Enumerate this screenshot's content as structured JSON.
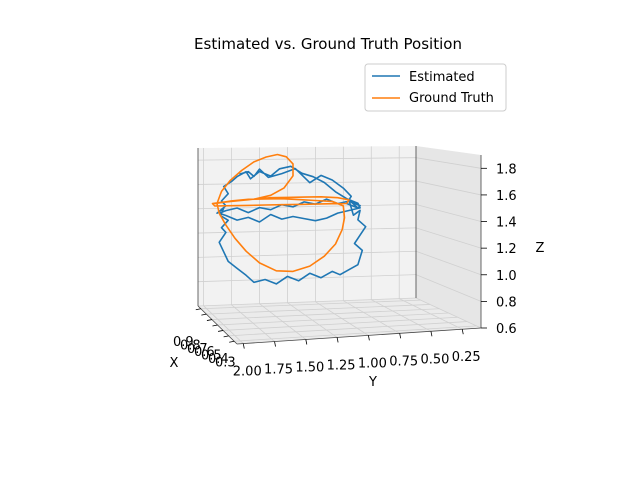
{
  "chart_data": {
    "type": "line3d",
    "title": "Estimated vs. Ground Truth Position",
    "xlabel": "X",
    "ylabel": "Y",
    "zlabel": "Z",
    "xlim": [
      0.2,
      1.0
    ],
    "ylim": [
      0.1,
      2.05
    ],
    "zlim": [
      0.6,
      1.9
    ],
    "x_ticks": [
      "0.9",
      "0.8",
      "0.7",
      "0.6",
      "0.5",
      "0.4",
      "0.3"
    ],
    "y_ticks": [
      "2.00",
      "1.75",
      "1.50",
      "1.25",
      "1.00",
      "0.75",
      "0.50",
      "0.25"
    ],
    "y_tick_values": [
      2.0,
      1.75,
      1.5,
      1.25,
      1.0,
      0.75,
      0.5,
      0.25
    ],
    "z_ticks": [
      "1.8",
      "1.6",
      "1.4",
      "1.2",
      "1.0",
      "0.8",
      "0.6"
    ],
    "z_tick_values": [
      1.8,
      1.6,
      1.4,
      1.2,
      1.0,
      0.8,
      0.6
    ],
    "legend_location": "top-right",
    "series": [
      {
        "name": "Estimated",
        "color": "#1f77b4",
        "y": [
          1.68,
          1.6,
          1.55,
          1.5,
          1.42,
          1.3,
          1.18,
          1.05,
          0.95,
          0.85,
          0.75,
          0.68,
          0.72,
          0.62,
          0.7,
          0.66,
          0.6,
          0.62,
          0.55,
          0.6,
          0.65,
          0.58,
          0.6,
          0.62,
          0.7,
          0.78,
          0.85,
          0.95,
          1.05,
          1.15,
          1.25,
          1.35,
          1.45,
          1.55,
          1.62,
          1.7,
          1.78,
          1.82,
          1.86,
          1.8,
          1.84,
          1.78,
          1.85,
          1.82,
          1.88,
          1.8,
          1.84,
          1.78,
          1.82,
          1.75,
          1.7,
          1.62,
          1.58,
          1.5,
          1.4,
          1.32,
          1.22,
          1.12,
          1.02,
          0.92,
          0.82,
          0.72,
          0.62,
          0.6,
          0.7,
          0.8,
          0.9,
          1.0,
          1.1,
          1.2,
          1.3,
          1.4,
          1.5,
          1.6,
          1.7,
          1.8,
          1.86,
          1.8,
          1.7,
          1.6,
          1.5,
          1.4,
          1.3,
          1.2,
          1.1,
          1.0,
          0.9,
          0.8,
          0.7,
          0.6,
          0.62
        ],
        "z": [
          1.68,
          1.7,
          1.66,
          1.72,
          1.65,
          1.68,
          1.72,
          1.6,
          1.66,
          1.62,
          1.55,
          1.48,
          1.42,
          1.38,
          1.45,
          1.32,
          1.36,
          1.28,
          1.22,
          1.15,
          1.08,
          1.02,
          0.96,
          0.9,
          0.86,
          0.82,
          0.85,
          0.8,
          0.84,
          0.78,
          0.82,
          0.76,
          0.8,
          0.78,
          0.84,
          0.9,
          0.96,
          1.04,
          1.12,
          1.2,
          1.24,
          1.3,
          1.34,
          1.4,
          1.36,
          1.42,
          1.46,
          1.52,
          1.58,
          1.62,
          1.66,
          1.7,
          1.64,
          1.7,
          1.66,
          1.72,
          1.74,
          1.68,
          1.65,
          1.6,
          1.52,
          1.46,
          1.42,
          1.38,
          1.36,
          1.34,
          1.3,
          1.28,
          1.3,
          1.32,
          1.3,
          1.34,
          1.28,
          1.32,
          1.3,
          1.34,
          1.36,
          1.38,
          1.4,
          1.36,
          1.4,
          1.38,
          1.42,
          1.4,
          1.44,
          1.42,
          1.46,
          1.42,
          1.44,
          1.4,
          1.38
        ]
      },
      {
        "name": "Ground Truth",
        "color": "#ff7f0e",
        "y": [
          1.9,
          1.75,
          1.6,
          1.45,
          1.3,
          1.15,
          1.0,
          0.85,
          0.75,
          0.74,
          0.76,
          0.82,
          0.92,
          1.05,
          1.2,
          1.35,
          1.5,
          1.62,
          1.72,
          1.8,
          1.86,
          1.88,
          1.84,
          1.76,
          1.66,
          1.55,
          1.44,
          1.34,
          1.26,
          1.2,
          1.2,
          1.28,
          1.4,
          1.55,
          1.7,
          1.84,
          1.92,
          1.9,
          1.75,
          1.6,
          1.45,
          1.3,
          1.15,
          1.0,
          0.85,
          0.72,
          0.7,
          0.8,
          0.95,
          1.1,
          1.25,
          1.4,
          1.55,
          1.7,
          1.82,
          1.9
        ],
        "z": [
          1.44,
          1.46,
          1.47,
          1.47,
          1.47,
          1.46,
          1.45,
          1.44,
          1.4,
          1.3,
          1.2,
          1.08,
          0.98,
          0.9,
          0.86,
          0.87,
          0.94,
          1.04,
          1.15,
          1.26,
          1.36,
          1.44,
          1.54,
          1.63,
          1.71,
          1.78,
          1.82,
          1.84,
          1.82,
          1.76,
          1.66,
          1.56,
          1.5,
          1.47,
          1.46,
          1.45,
          1.44,
          1.42,
          1.42,
          1.42,
          1.42,
          1.42,
          1.42,
          1.42,
          1.42,
          1.42,
          1.45,
          1.47,
          1.48,
          1.48,
          1.48,
          1.48,
          1.47,
          1.46,
          1.45,
          1.44
        ]
      }
    ]
  }
}
